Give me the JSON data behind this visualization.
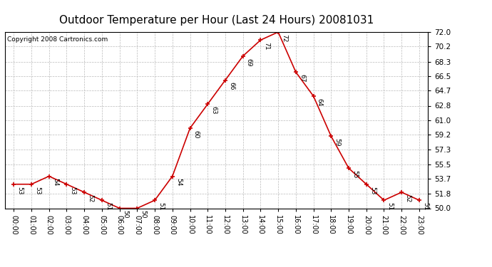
{
  "title": "Outdoor Temperature per Hour (Last 24 Hours) 20081031",
  "copyright": "Copyright 2008 Cartronics.com",
  "hours": [
    "00:00",
    "01:00",
    "02:00",
    "03:00",
    "04:00",
    "05:00",
    "06:00",
    "07:00",
    "08:00",
    "09:00",
    "10:00",
    "11:00",
    "12:00",
    "13:00",
    "14:00",
    "15:00",
    "16:00",
    "17:00",
    "18:00",
    "19:00",
    "20:00",
    "21:00",
    "22:00",
    "23:00"
  ],
  "temps": [
    53,
    53,
    54,
    53,
    52,
    51,
    50,
    50,
    51,
    54,
    60,
    63,
    66,
    69,
    71,
    72,
    67,
    64,
    59,
    55,
    53,
    51,
    52,
    51
  ],
  "ylim_min": 50.0,
  "ylim_max": 72.0,
  "yticks": [
    50.0,
    51.8,
    53.7,
    55.5,
    57.3,
    59.2,
    61.0,
    62.8,
    64.7,
    66.5,
    68.3,
    70.2,
    72.0
  ],
  "line_color": "#cc0000",
  "marker_color": "#cc0000",
  "bg_color": "#ffffff",
  "grid_color": "#bbbbbb",
  "title_fontsize": 11,
  "annot_fontsize": 6.5,
  "copyright_fontsize": 6.5,
  "xtick_fontsize": 7,
  "ytick_fontsize": 7.5
}
